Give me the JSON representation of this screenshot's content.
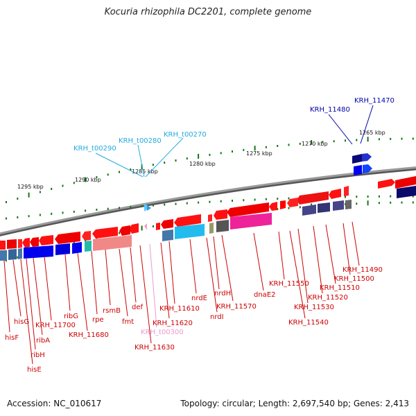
{
  "header": {
    "title": "Kocuria rhizophila DC2201, complete genome"
  },
  "footer": {
    "accession": "Accession: NC_010617",
    "topology": "Topology: circular; Length: 2,697,540 bp; Genes: 2,413"
  },
  "scale_labels": [
    "1265 kbp",
    "1270 kbp",
    "1275 kbp",
    "1280 kbp",
    "1285 kbp",
    "1290 kbp",
    "1295 kbp"
  ],
  "colors": {
    "gene_cds": "#ff0000",
    "trna": "#33ccee",
    "misc_rna": "#f0a0c8",
    "blue_gene": "#0000ee",
    "backbone": "#888888",
    "tick": "#117711",
    "label_red": "#cc0000",
    "label_blue": "#0000aa",
    "label_cyan": "#22aadd",
    "label_pink": "#ee99cc"
  },
  "gene_labels": [
    {
      "id": "KRH_11470",
      "color": "label_blue"
    },
    {
      "id": "KRH_11480",
      "color": "label_blue"
    },
    {
      "id": "KRH_t00270",
      "color": "label_cyan"
    },
    {
      "id": "KRH_t00280",
      "color": "label_cyan"
    },
    {
      "id": "KRH_t00290",
      "color": "label_cyan"
    },
    {
      "id": "KRH_11490",
      "color": "label_red"
    },
    {
      "id": "KRH_11500",
      "color": "label_red"
    },
    {
      "id": "KRH_11510",
      "color": "label_red"
    },
    {
      "id": "KRH_11520",
      "color": "label_red"
    },
    {
      "id": "KRH_11530",
      "color": "label_red"
    },
    {
      "id": "KRH_11540",
      "color": "label_red"
    },
    {
      "id": "KRH_11550",
      "color": "label_red"
    },
    {
      "id": "dnaE2",
      "color": "label_red"
    },
    {
      "id": "KRH_11570",
      "color": "label_red"
    },
    {
      "id": "nrdH",
      "color": "label_red"
    },
    {
      "id": "nrdI",
      "color": "label_red"
    },
    {
      "id": "nrdE",
      "color": "label_red"
    },
    {
      "id": "KRH_11610",
      "color": "label_red"
    },
    {
      "id": "KRH_11620",
      "color": "label_red"
    },
    {
      "id": "KRH_t00300",
      "color": "label_pink"
    },
    {
      "id": "KRH_11630",
      "color": "label_red"
    },
    {
      "id": "def",
      "color": "label_red"
    },
    {
      "id": "fmt",
      "color": "label_red"
    },
    {
      "id": "rsmB",
      "color": "label_red"
    },
    {
      "id": "rpe",
      "color": "label_red"
    },
    {
      "id": "KRH_11680",
      "color": "label_red"
    },
    {
      "id": "ribG",
      "color": "label_red"
    },
    {
      "id": "KRH_11700",
      "color": "label_red"
    },
    {
      "id": "ribA",
      "color": "label_red"
    },
    {
      "id": "ribH",
      "color": "label_red"
    },
    {
      "id": "hisE",
      "color": "label_red"
    },
    {
      "id": "hisG",
      "color": "label_red"
    },
    {
      "id": "hisF",
      "color": "label_red"
    }
  ]
}
